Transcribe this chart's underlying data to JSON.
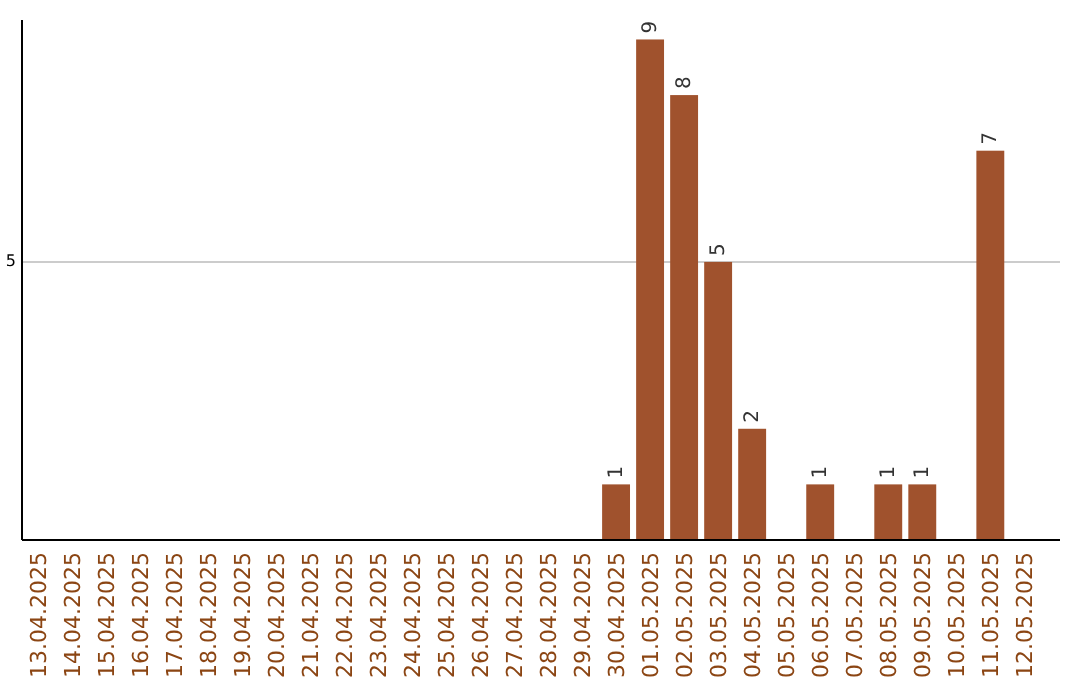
{
  "chart_data": {
    "type": "bar",
    "categories": [
      "13.04.2025",
      "14.04.2025",
      "15.04.2025",
      "16.04.2025",
      "17.04.2025",
      "18.04.2025",
      "19.04.2025",
      "20.04.2025",
      "21.04.2025",
      "22.04.2025",
      "23.04.2025",
      "24.04.2025",
      "25.04.2025",
      "26.04.2025",
      "27.04.2025",
      "28.04.2025",
      "29.04.2025",
      "30.04.2025",
      "01.05.2025",
      "02.05.2025",
      "03.05.2025",
      "04.05.2025",
      "05.05.2025",
      "06.05.2025",
      "07.05.2025",
      "08.05.2025",
      "09.05.2025",
      "10.05.2025",
      "11.05.2025",
      "12.05.2025"
    ],
    "values": [
      null,
      null,
      null,
      null,
      null,
      null,
      null,
      null,
      null,
      null,
      null,
      null,
      null,
      null,
      null,
      null,
      null,
      1,
      9,
      8,
      5,
      2,
      null,
      1,
      null,
      1,
      1,
      null,
      7,
      null
    ],
    "value_labels": [
      null,
      null,
      null,
      null,
      null,
      null,
      null,
      null,
      null,
      null,
      null,
      null,
      null,
      null,
      null,
      null,
      null,
      "1",
      "9",
      "8",
      "5",
      "2",
      null,
      "1",
      null,
      "1",
      "1",
      null,
      "7",
      null
    ],
    "color": "#a0522d",
    "ylim": [
      0,
      9.35
    ],
    "yticks": [
      5
    ],
    "grid": "y"
  }
}
